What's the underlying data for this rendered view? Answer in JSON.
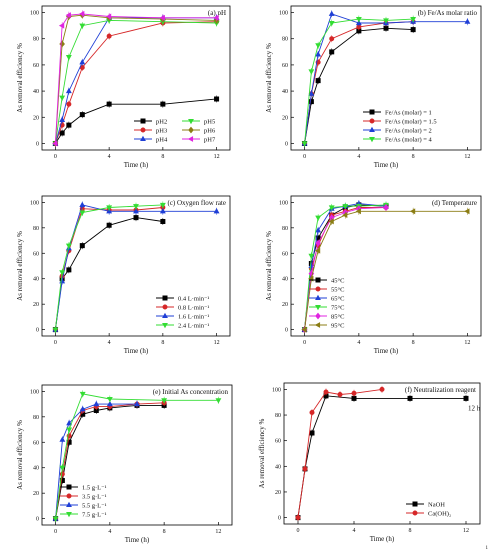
{
  "figure": {
    "page_number": "1"
  },
  "chart_data": [
    {
      "type": "line",
      "title": "(a) pH",
      "xlabel": "Time (h)",
      "ylabel": "As removal efficiency %",
      "xlim": [
        -1,
        13
      ],
      "ylim": [
        -5,
        105
      ],
      "xticks": [
        0,
        4,
        8,
        12
      ],
      "yticks": [
        0,
        20,
        40,
        60,
        80,
        100
      ],
      "legend_position": "bottom-right",
      "legend_columns": 2,
      "series": [
        {
          "name": "pH2",
          "color": "#000000",
          "marker": "square",
          "x": [
            0,
            0.5,
            1,
            2,
            4,
            8,
            12
          ],
          "y": [
            0,
            8,
            14,
            22,
            30,
            30,
            34
          ]
        },
        {
          "name": "pH3",
          "color": "#d62728",
          "marker": "circle",
          "x": [
            0,
            0.5,
            1,
            2,
            4,
            8,
            12
          ],
          "y": [
            0,
            14,
            30,
            58,
            82,
            92,
            93
          ]
        },
        {
          "name": "pH4",
          "color": "#1f3fd6",
          "marker": "triangle",
          "x": [
            0,
            0.5,
            1,
            2,
            4,
            8,
            12
          ],
          "y": [
            0,
            18,
            40,
            62,
            96,
            96,
            96
          ]
        },
        {
          "name": "pH5",
          "color": "#33dd33",
          "marker": "triangle-down",
          "x": [
            0,
            0.5,
            1,
            2,
            4,
            8,
            12
          ],
          "y": [
            0,
            35,
            66,
            90,
            94,
            93,
            92
          ]
        },
        {
          "name": "pH6",
          "color": "#8b7d14",
          "marker": "diamond",
          "x": [
            0,
            0.5,
            1,
            2,
            4,
            8,
            12
          ],
          "y": [
            0,
            76,
            97,
            98,
            96,
            95,
            94
          ]
        },
        {
          "name": "pH7",
          "color": "#e024e0",
          "marker": "triangle-left",
          "x": [
            0,
            0.5,
            1,
            2,
            4,
            8,
            12
          ],
          "y": [
            0,
            90,
            98,
            99,
            97,
            96,
            96
          ]
        }
      ]
    },
    {
      "type": "line",
      "title": "(b) Fe/As molar ratio",
      "xlabel": "Time (h)",
      "ylabel": "As removal efficiency %",
      "xlim": [
        -1,
        13
      ],
      "ylim": [
        -5,
        105
      ],
      "xticks": [
        0,
        4,
        8,
        12
      ],
      "yticks": [
        0,
        20,
        40,
        60,
        80,
        100
      ],
      "legend_position": "bottom-right",
      "legend_columns": 1,
      "series": [
        {
          "name": "Fe/As (molar) = 1",
          "color": "#000000",
          "marker": "square",
          "x": [
            0,
            0.5,
            1,
            2,
            4,
            6,
            8
          ],
          "y": [
            0,
            32,
            48,
            70,
            86,
            88,
            87
          ]
        },
        {
          "name": "Fe/As (molar) = 1.5",
          "color": "#d62728",
          "marker": "circle",
          "x": [
            0,
            0.5,
            1,
            2,
            4,
            6,
            8
          ],
          "y": [
            0,
            38,
            62,
            80,
            89,
            92,
            93
          ]
        },
        {
          "name": "Fe/As (molar) = 2",
          "color": "#1f3fd6",
          "marker": "triangle",
          "x": [
            0,
            0.5,
            1,
            2,
            4,
            6,
            8,
            12
          ],
          "y": [
            0,
            38,
            68,
            99,
            92,
            92,
            93,
            93
          ]
        },
        {
          "name": "Fe/As (molar) = 4",
          "color": "#33dd33",
          "marker": "triangle-down",
          "x": [
            0,
            0.5,
            1,
            2,
            4,
            6,
            8
          ],
          "y": [
            0,
            55,
            75,
            92,
            95,
            94,
            95
          ]
        }
      ]
    },
    {
      "type": "line",
      "title": "(c) Oxygen flow rate",
      "xlabel": "Time (h)",
      "ylabel": "As removal efficiency %",
      "xlim": [
        -1,
        13
      ],
      "ylim": [
        -5,
        105
      ],
      "xticks": [
        0,
        4,
        8,
        12
      ],
      "yticks": [
        0,
        20,
        40,
        60,
        80,
        100
      ],
      "legend_position": "bottom-right",
      "legend_columns": 1,
      "series": [
        {
          "name": "0.4 L·min⁻¹",
          "color": "#000000",
          "marker": "square",
          "x": [
            0,
            0.5,
            1,
            2,
            4,
            6,
            8
          ],
          "y": [
            0,
            40,
            47,
            66,
            82,
            88,
            85
          ]
        },
        {
          "name": "0.8 L·min⁻¹",
          "color": "#d62728",
          "marker": "circle",
          "x": [
            0,
            0.5,
            1,
            2,
            4,
            6,
            8
          ],
          "y": [
            0,
            42,
            62,
            95,
            94,
            94,
            96
          ]
        },
        {
          "name": "1.6 L·min⁻¹",
          "color": "#1f3fd6",
          "marker": "triangle",
          "x": [
            0,
            0.5,
            1,
            2,
            4,
            6,
            8,
            12
          ],
          "y": [
            0,
            38,
            64,
            98,
            93,
            93,
            93,
            93
          ]
        },
        {
          "name": "2.4 L·min⁻¹",
          "color": "#33dd33",
          "marker": "triangle-down",
          "x": [
            0,
            0.5,
            1,
            2,
            4,
            6,
            8
          ],
          "y": [
            0,
            45,
            66,
            92,
            96,
            97,
            98
          ]
        }
      ]
    },
    {
      "type": "line",
      "title": "(d) Temperature",
      "xlabel": "Time (h)",
      "ylabel": "As removal efficiency %",
      "xlim": [
        -1,
        13
      ],
      "ylim": [
        -5,
        105
      ],
      "xticks": [
        0,
        4,
        8,
        12
      ],
      "yticks": [
        0,
        20,
        40,
        60,
        80,
        100
      ],
      "legend_position": "bottom-left",
      "legend_columns": 1,
      "series": [
        {
          "name": "45°C",
          "color": "#000000",
          "marker": "square",
          "x": [
            0,
            0.5,
            1,
            2,
            3,
            4,
            6
          ],
          "y": [
            0,
            52,
            72,
            90,
            96,
            98,
            97
          ]
        },
        {
          "name": "55°C",
          "color": "#d62728",
          "marker": "circle",
          "x": [
            0,
            0.5,
            1,
            2,
            3,
            4,
            6
          ],
          "y": [
            0,
            48,
            66,
            90,
            93,
            96,
            96
          ]
        },
        {
          "name": "65°C",
          "color": "#1f3fd6",
          "marker": "triangle",
          "x": [
            0,
            0.5,
            1,
            2,
            3,
            4,
            6
          ],
          "y": [
            0,
            50,
            78,
            95,
            97,
            99,
            97
          ]
        },
        {
          "name": "75°C",
          "color": "#33dd33",
          "marker": "triangle-down",
          "x": [
            0,
            0.5,
            1,
            2,
            3,
            4,
            6
          ],
          "y": [
            0,
            58,
            88,
            96,
            97,
            97,
            98
          ]
        },
        {
          "name": "85°C",
          "color": "#e024e0",
          "marker": "diamond",
          "x": [
            0,
            0.5,
            1,
            2,
            3,
            4,
            6
          ],
          "y": [
            0,
            44,
            68,
            88,
            92,
            95,
            96
          ]
        },
        {
          "name": "95°C",
          "color": "#8b7d14",
          "marker": "triangle-left",
          "x": [
            0,
            0.5,
            1,
            2,
            3,
            4,
            8,
            12
          ],
          "y": [
            0,
            40,
            62,
            85,
            90,
            93,
            93,
            93
          ]
        }
      ]
    },
    {
      "type": "line",
      "title": "(e) Initial As concentration",
      "xlabel": "Time (h)",
      "ylabel": "As removal efficiency %",
      "xlim": [
        -1,
        13
      ],
      "ylim": [
        -5,
        105
      ],
      "xticks": [
        0,
        4,
        8,
        12
      ],
      "yticks": [
        0,
        20,
        40,
        60,
        80,
        100
      ],
      "legend_position": "bottom-left",
      "legend_columns": 1,
      "series": [
        {
          "name": "1.5 g·L⁻¹",
          "color": "#000000",
          "marker": "square",
          "x": [
            0,
            0.5,
            1,
            2,
            3,
            4,
            6,
            8
          ],
          "y": [
            0,
            30,
            60,
            82,
            85,
            87,
            89,
            89
          ]
        },
        {
          "name": "3.5 g·L⁻¹",
          "color": "#d62728",
          "marker": "circle",
          "x": [
            0,
            0.5,
            1,
            2,
            3,
            4,
            6,
            8
          ],
          "y": [
            0,
            35,
            65,
            85,
            88,
            88,
            90,
            91
          ]
        },
        {
          "name": "5.5 g·L⁻¹",
          "color": "#1f3fd6",
          "marker": "triangle",
          "x": [
            0,
            0.5,
            1,
            2,
            3,
            4,
            6
          ],
          "y": [
            0,
            62,
            75,
            86,
            90,
            90,
            90
          ]
        },
        {
          "name": "7.5 g·L⁻¹",
          "color": "#33dd33",
          "marker": "triangle-down",
          "x": [
            0,
            0.5,
            1,
            2,
            4,
            8,
            12
          ],
          "y": [
            0,
            40,
            70,
            98,
            94,
            93,
            93
          ]
        }
      ]
    },
    {
      "type": "line",
      "title": "(f) Neutralization reagent",
      "xlabel": "Time (h)",
      "ylabel": "As removal efficiency %",
      "xlim": [
        -1,
        13
      ],
      "ylim": [
        -5,
        105
      ],
      "xticks": [
        0,
        4,
        8,
        12
      ],
      "yticks": [
        0,
        20,
        40,
        60,
        80,
        100
      ],
      "legend_position": "bottom-right",
      "legend_columns": 1,
      "annotation": "12 h",
      "series": [
        {
          "name": "NaOH",
          "color": "#000000",
          "marker": "square",
          "x": [
            0,
            0.5,
            1,
            2,
            4,
            8,
            12
          ],
          "y": [
            0,
            38,
            66,
            95,
            93,
            93,
            93
          ]
        },
        {
          "name": "Ca(OH)₂",
          "color": "#d62728",
          "marker": "circle",
          "x": [
            0,
            0.5,
            1,
            2,
            3,
            4,
            6
          ],
          "y": [
            0,
            38,
            82,
            98,
            96,
            97,
            100
          ]
        }
      ]
    }
  ]
}
